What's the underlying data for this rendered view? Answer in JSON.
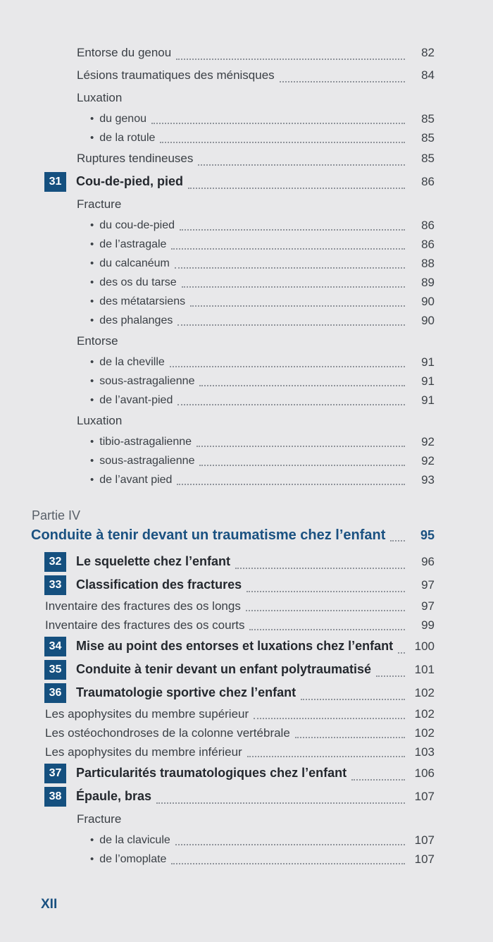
{
  "theme": {
    "background": "#e8e8ea",
    "text_color": "#3b4046",
    "chapter_text_color": "#24282e",
    "badge_color": "#15507f",
    "part_title_color": "#1a5181",
    "kicker_color": "#596069",
    "leader_dot_color": "#8f939a"
  },
  "toc": {
    "rows": [
      {
        "type": "entry1",
        "label": "Entorse du genou",
        "page": "82"
      },
      {
        "type": "entry1",
        "label": "Lésions traumatiques des ménisques",
        "page": "84"
      },
      {
        "type": "group",
        "label": "Luxation"
      },
      {
        "type": "bullet",
        "label": "du genou",
        "page": "85"
      },
      {
        "type": "bullet",
        "label": "de la rotule",
        "page": "85"
      },
      {
        "type": "entry1",
        "label": "Ruptures tendineuses",
        "page": "85"
      },
      {
        "type": "chapter",
        "num": "31",
        "label": "Cou-de-pied, pied",
        "page": "86"
      },
      {
        "type": "group",
        "label": "Fracture"
      },
      {
        "type": "bullet",
        "label": "du cou-de-pied",
        "page": "86"
      },
      {
        "type": "bullet",
        "label": "de l’astragale",
        "page": "86"
      },
      {
        "type": "bullet",
        "label": "du calcanéum",
        "page": "88"
      },
      {
        "type": "bullet",
        "label": "des os du tarse",
        "page": "89"
      },
      {
        "type": "bullet",
        "label": "des métatarsiens",
        "page": "90"
      },
      {
        "type": "bullet",
        "label": "des phalanges",
        "page": "90"
      },
      {
        "type": "group",
        "label": "Entorse"
      },
      {
        "type": "bullet",
        "label": "de la cheville",
        "page": "91"
      },
      {
        "type": "bullet",
        "label": "sous-astragalienne",
        "page": "91"
      },
      {
        "type": "bullet",
        "label": "de l’avant-pied",
        "page": "91"
      },
      {
        "type": "group",
        "label": "Luxation"
      },
      {
        "type": "bullet",
        "label": "tibio-astragalienne",
        "page": "92"
      },
      {
        "type": "bullet",
        "label": "sous-astragalienne",
        "page": "92"
      },
      {
        "type": "bullet",
        "label": "de l’avant pied",
        "page": "93"
      },
      {
        "type": "part",
        "kicker": "Partie IV",
        "label": "Conduite à tenir devant un traumatisme chez l’enfant",
        "page": "95"
      },
      {
        "type": "chapter",
        "num": "32",
        "label": "Le squelette chez l’enfant",
        "page": "96"
      },
      {
        "type": "chapter",
        "num": "33",
        "label": "Classification des fractures",
        "page": "97"
      },
      {
        "type": "sub",
        "label": "Inventaire des fractures des os longs",
        "page": "97"
      },
      {
        "type": "sub",
        "label": "Inventaire des fractures des os courts",
        "page": "99"
      },
      {
        "type": "chapter",
        "num": "34",
        "label": "Mise au point des entorses et luxations chez l’enfant",
        "page": "100"
      },
      {
        "type": "chapter",
        "num": "35",
        "label": "Conduite à tenir devant un enfant polytraumatisé",
        "page": "101"
      },
      {
        "type": "chapter",
        "num": "36",
        "label": "Traumatologie sportive chez l’enfant",
        "page": "102"
      },
      {
        "type": "sub",
        "label": "Les apophysites du membre supérieur",
        "page": "102"
      },
      {
        "type": "sub",
        "label": "Les ostéochondroses de la colonne vertébrale",
        "page": "102"
      },
      {
        "type": "sub",
        "label": "Les apophysites du membre inférieur",
        "page": "103"
      },
      {
        "type": "chapter",
        "num": "37",
        "label": "Particularités traumatologiques chez l’enfant",
        "page": "106"
      },
      {
        "type": "chapter",
        "num": "38",
        "label": "Épaule, bras",
        "page": "107"
      },
      {
        "type": "group",
        "label": "Fracture"
      },
      {
        "type": "bullet",
        "label": "de la clavicule",
        "page": "107"
      },
      {
        "type": "bullet",
        "label": "de l’omoplate",
        "page": "107"
      }
    ]
  },
  "footer": {
    "page_label": "XII"
  }
}
